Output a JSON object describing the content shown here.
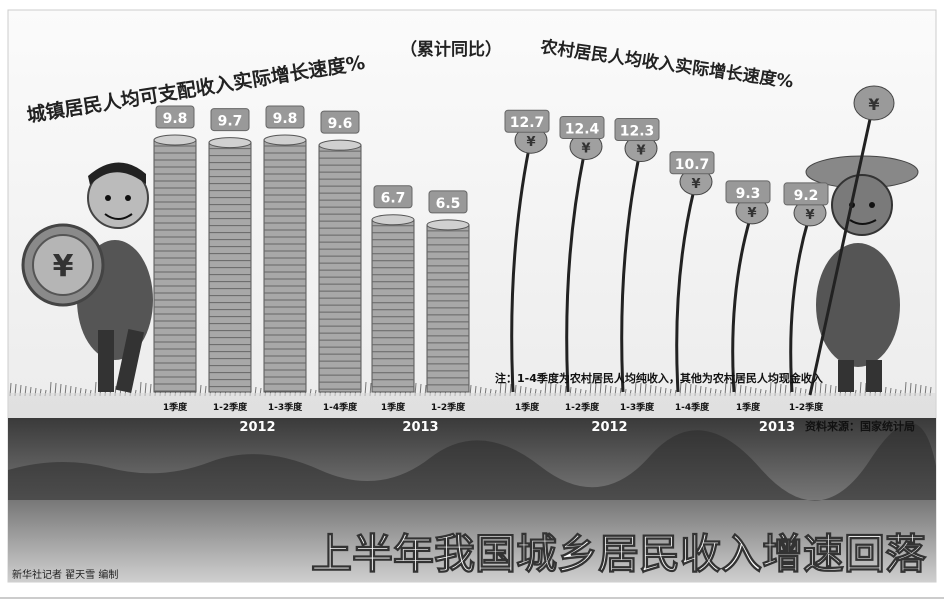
{
  "title_left": "城镇居民人均可支配收入实际增长速度%",
  "title_middle": "（累计同比）",
  "title_right": "农村居民人均收入实际增长速度%",
  "headline": "上半年我国城乡居民收入增速回落",
  "note": "注：1-4季度为农村居民人均纯收入，其他为农村居民人均现金收入",
  "source": "资料来源：国家统计局",
  "credit": "新华社记者 翟天雪 编制",
  "colors": {
    "label_bg": "#999999",
    "sky": "#f2f2f2",
    "ground": "#333333",
    "coin": "#9a9a9a"
  },
  "chart_data": [
    {
      "type": "bar",
      "title": "城镇居民人均可支配收入实际增长速度%",
      "subtitle": "（累计同比）",
      "categories": [
        "1季度",
        "1-2季度",
        "1-3季度",
        "1-4季度",
        "1季度",
        "1-2季度"
      ],
      "year_groups": [
        {
          "year": "2012",
          "count": 4
        },
        {
          "year": "2013",
          "count": 2
        }
      ],
      "series": [
        {
          "values": [
            9.8,
            9.7,
            9.8,
            9.6,
            6.7,
            6.5
          ]
        }
      ],
      "data_labels": [
        "9.8",
        "9.7",
        "9.8",
        "9.6",
        "6.7",
        "6.5"
      ],
      "ylim": [
        0,
        10.5
      ],
      "grid": false
    },
    {
      "type": "bar",
      "title": "农村居民人均收入实际增长速度%",
      "categories": [
        "1季度",
        "1-2季度",
        "1-3季度",
        "1-4季度",
        "1季度",
        "1-2季度"
      ],
      "year_groups": [
        {
          "year": "2012",
          "count": 4
        },
        {
          "year": "2013",
          "count": 2
        }
      ],
      "series": [
        {
          "values": [
            12.7,
            12.4,
            12.3,
            10.7,
            9.3,
            9.2
          ]
        }
      ],
      "data_labels": [
        "12.7",
        "12.4",
        "12.3",
        "10.7",
        "9.3",
        "9.2"
      ],
      "ylim": [
        0,
        13
      ],
      "grid": false
    }
  ]
}
